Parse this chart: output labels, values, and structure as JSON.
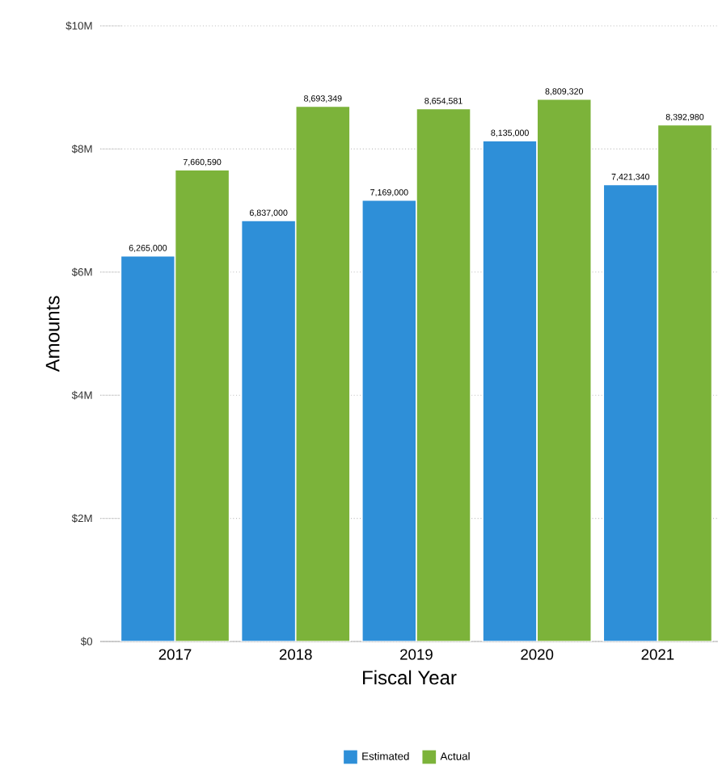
{
  "chart_data": {
    "type": "bar",
    "xlabel": "Fiscal Year",
    "ylabel": "Amounts",
    "categories": [
      "2017",
      "2018",
      "2019",
      "2020",
      "2021"
    ],
    "series": [
      {
        "name": "Estimated",
        "color": "#2e8fd8",
        "values": [
          6265000,
          6837000,
          7169000,
          8135000,
          7421340
        ],
        "value_labels": [
          "6,265,000",
          "6,837,000",
          "7,169,000",
          "8,135,000",
          "7,421,340"
        ]
      },
      {
        "name": "Actual",
        "color": "#7cb33a",
        "values": [
          7660590,
          8693349,
          8654581,
          8809320,
          8392980
        ],
        "value_labels": [
          "7,660,590",
          "8,693,349",
          "8,654,581",
          "8,809,320",
          "8,392,980"
        ]
      }
    ],
    "ylim": [
      0,
      10000000
    ],
    "yticks": [
      {
        "value": 0,
        "label": "$0"
      },
      {
        "value": 2000000,
        "label": "$2M"
      },
      {
        "value": 4000000,
        "label": "$4M"
      },
      {
        "value": 6000000,
        "label": "$6M"
      },
      {
        "value": 8000000,
        "label": "$8M"
      },
      {
        "value": 10000000,
        "label": "$10M"
      }
    ],
    "grid": "y",
    "legend": "bottom"
  }
}
